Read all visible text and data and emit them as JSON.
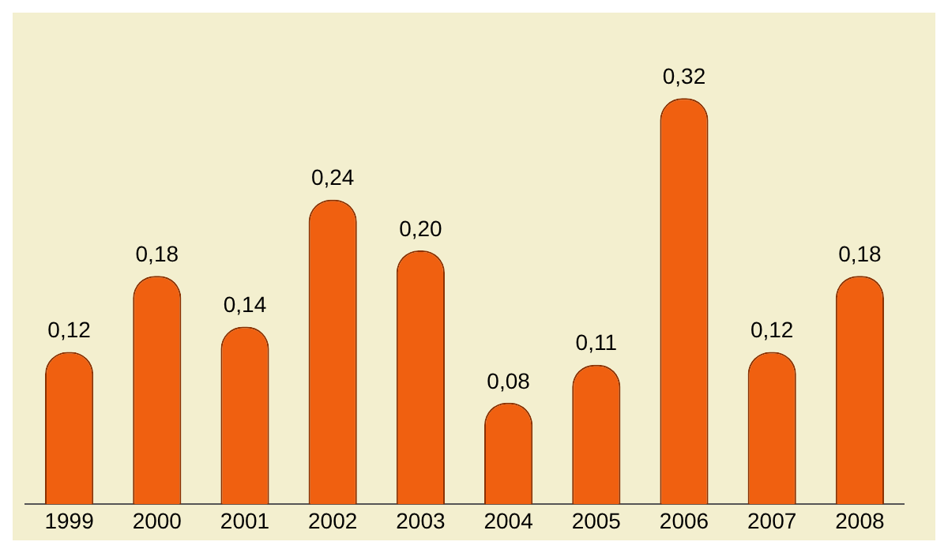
{
  "chart_data": {
    "type": "bar",
    "categories": [
      "1999",
      "2000",
      "2001",
      "2002",
      "2003",
      "2004",
      "2005",
      "2006",
      "2007",
      "2008"
    ],
    "values": [
      0.12,
      0.18,
      0.14,
      0.24,
      0.2,
      0.08,
      0.11,
      0.32,
      0.12,
      0.18
    ],
    "value_labels": [
      "0,12",
      "0,18",
      "0,14",
      "0,24",
      "0,20",
      "0,08",
      "0,11",
      "0,32",
      "0,12",
      "0,18"
    ],
    "color": "#f06010",
    "tick_labels": "x",
    "grid": false,
    "legend": false
  }
}
